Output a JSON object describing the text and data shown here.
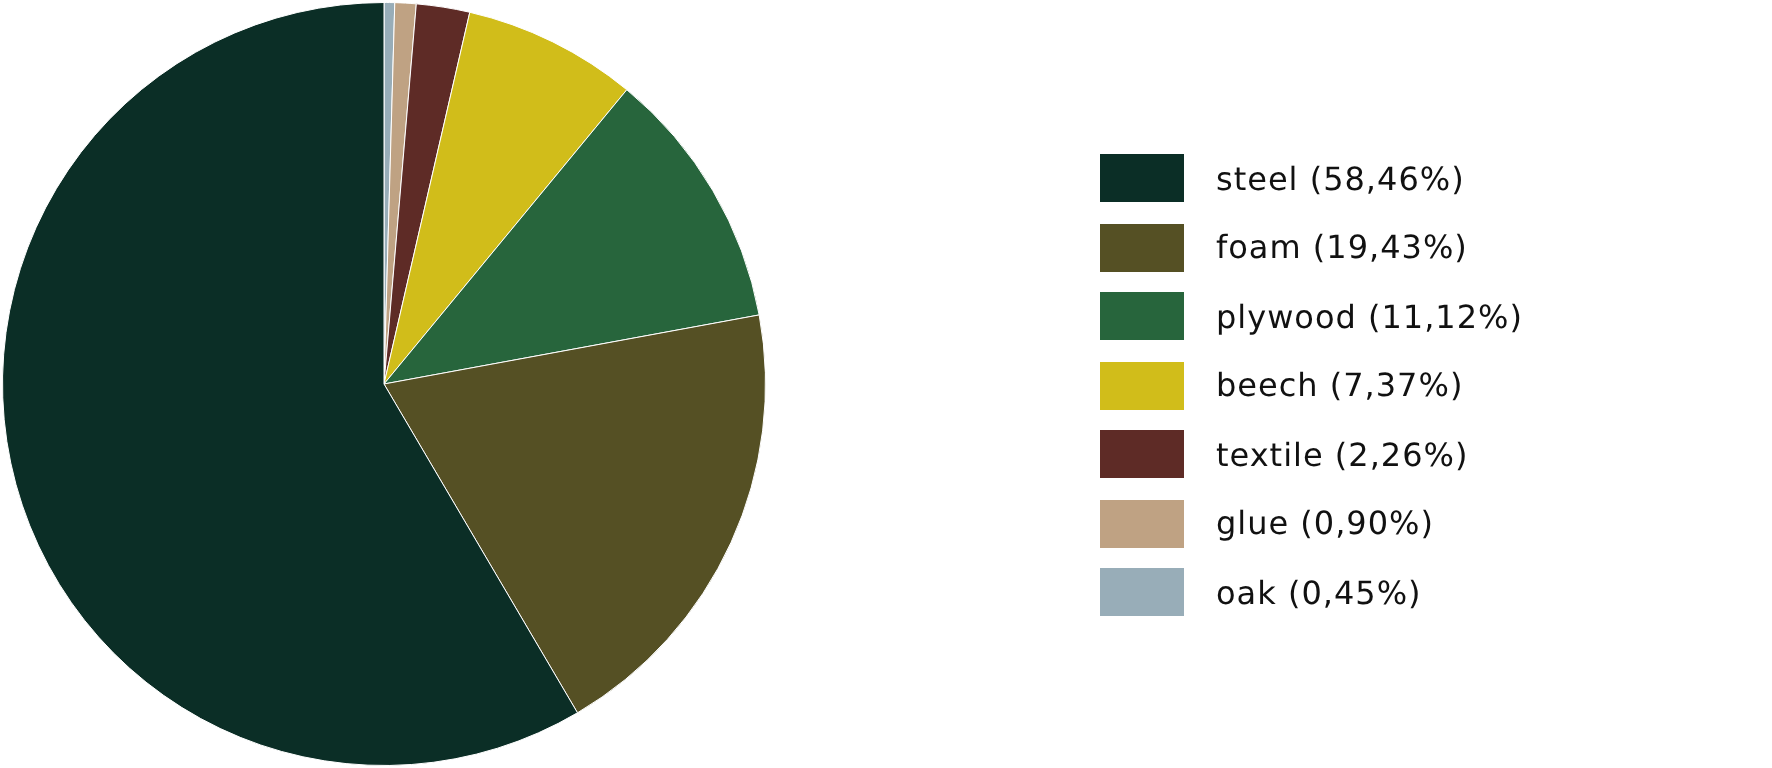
{
  "chart_data": {
    "type": "pie",
    "categories": [
      "steel (58,46%)",
      "foam (19,43%)",
      "plywood (11,12%)",
      "beech (7,37%)",
      "textile (2,26%)",
      "glue (0,90%)",
      "oak (0,45%)"
    ],
    "values": [
      58.46,
      19.43,
      11.12,
      7.37,
      2.26,
      0.9,
      0.45
    ],
    "colors": [
      "#0b2e26",
      "#555024",
      "#27653c",
      "#d1bd1a",
      "#5e2b26",
      "#bfa283",
      "#98adb8"
    ],
    "legend": "right"
  }
}
